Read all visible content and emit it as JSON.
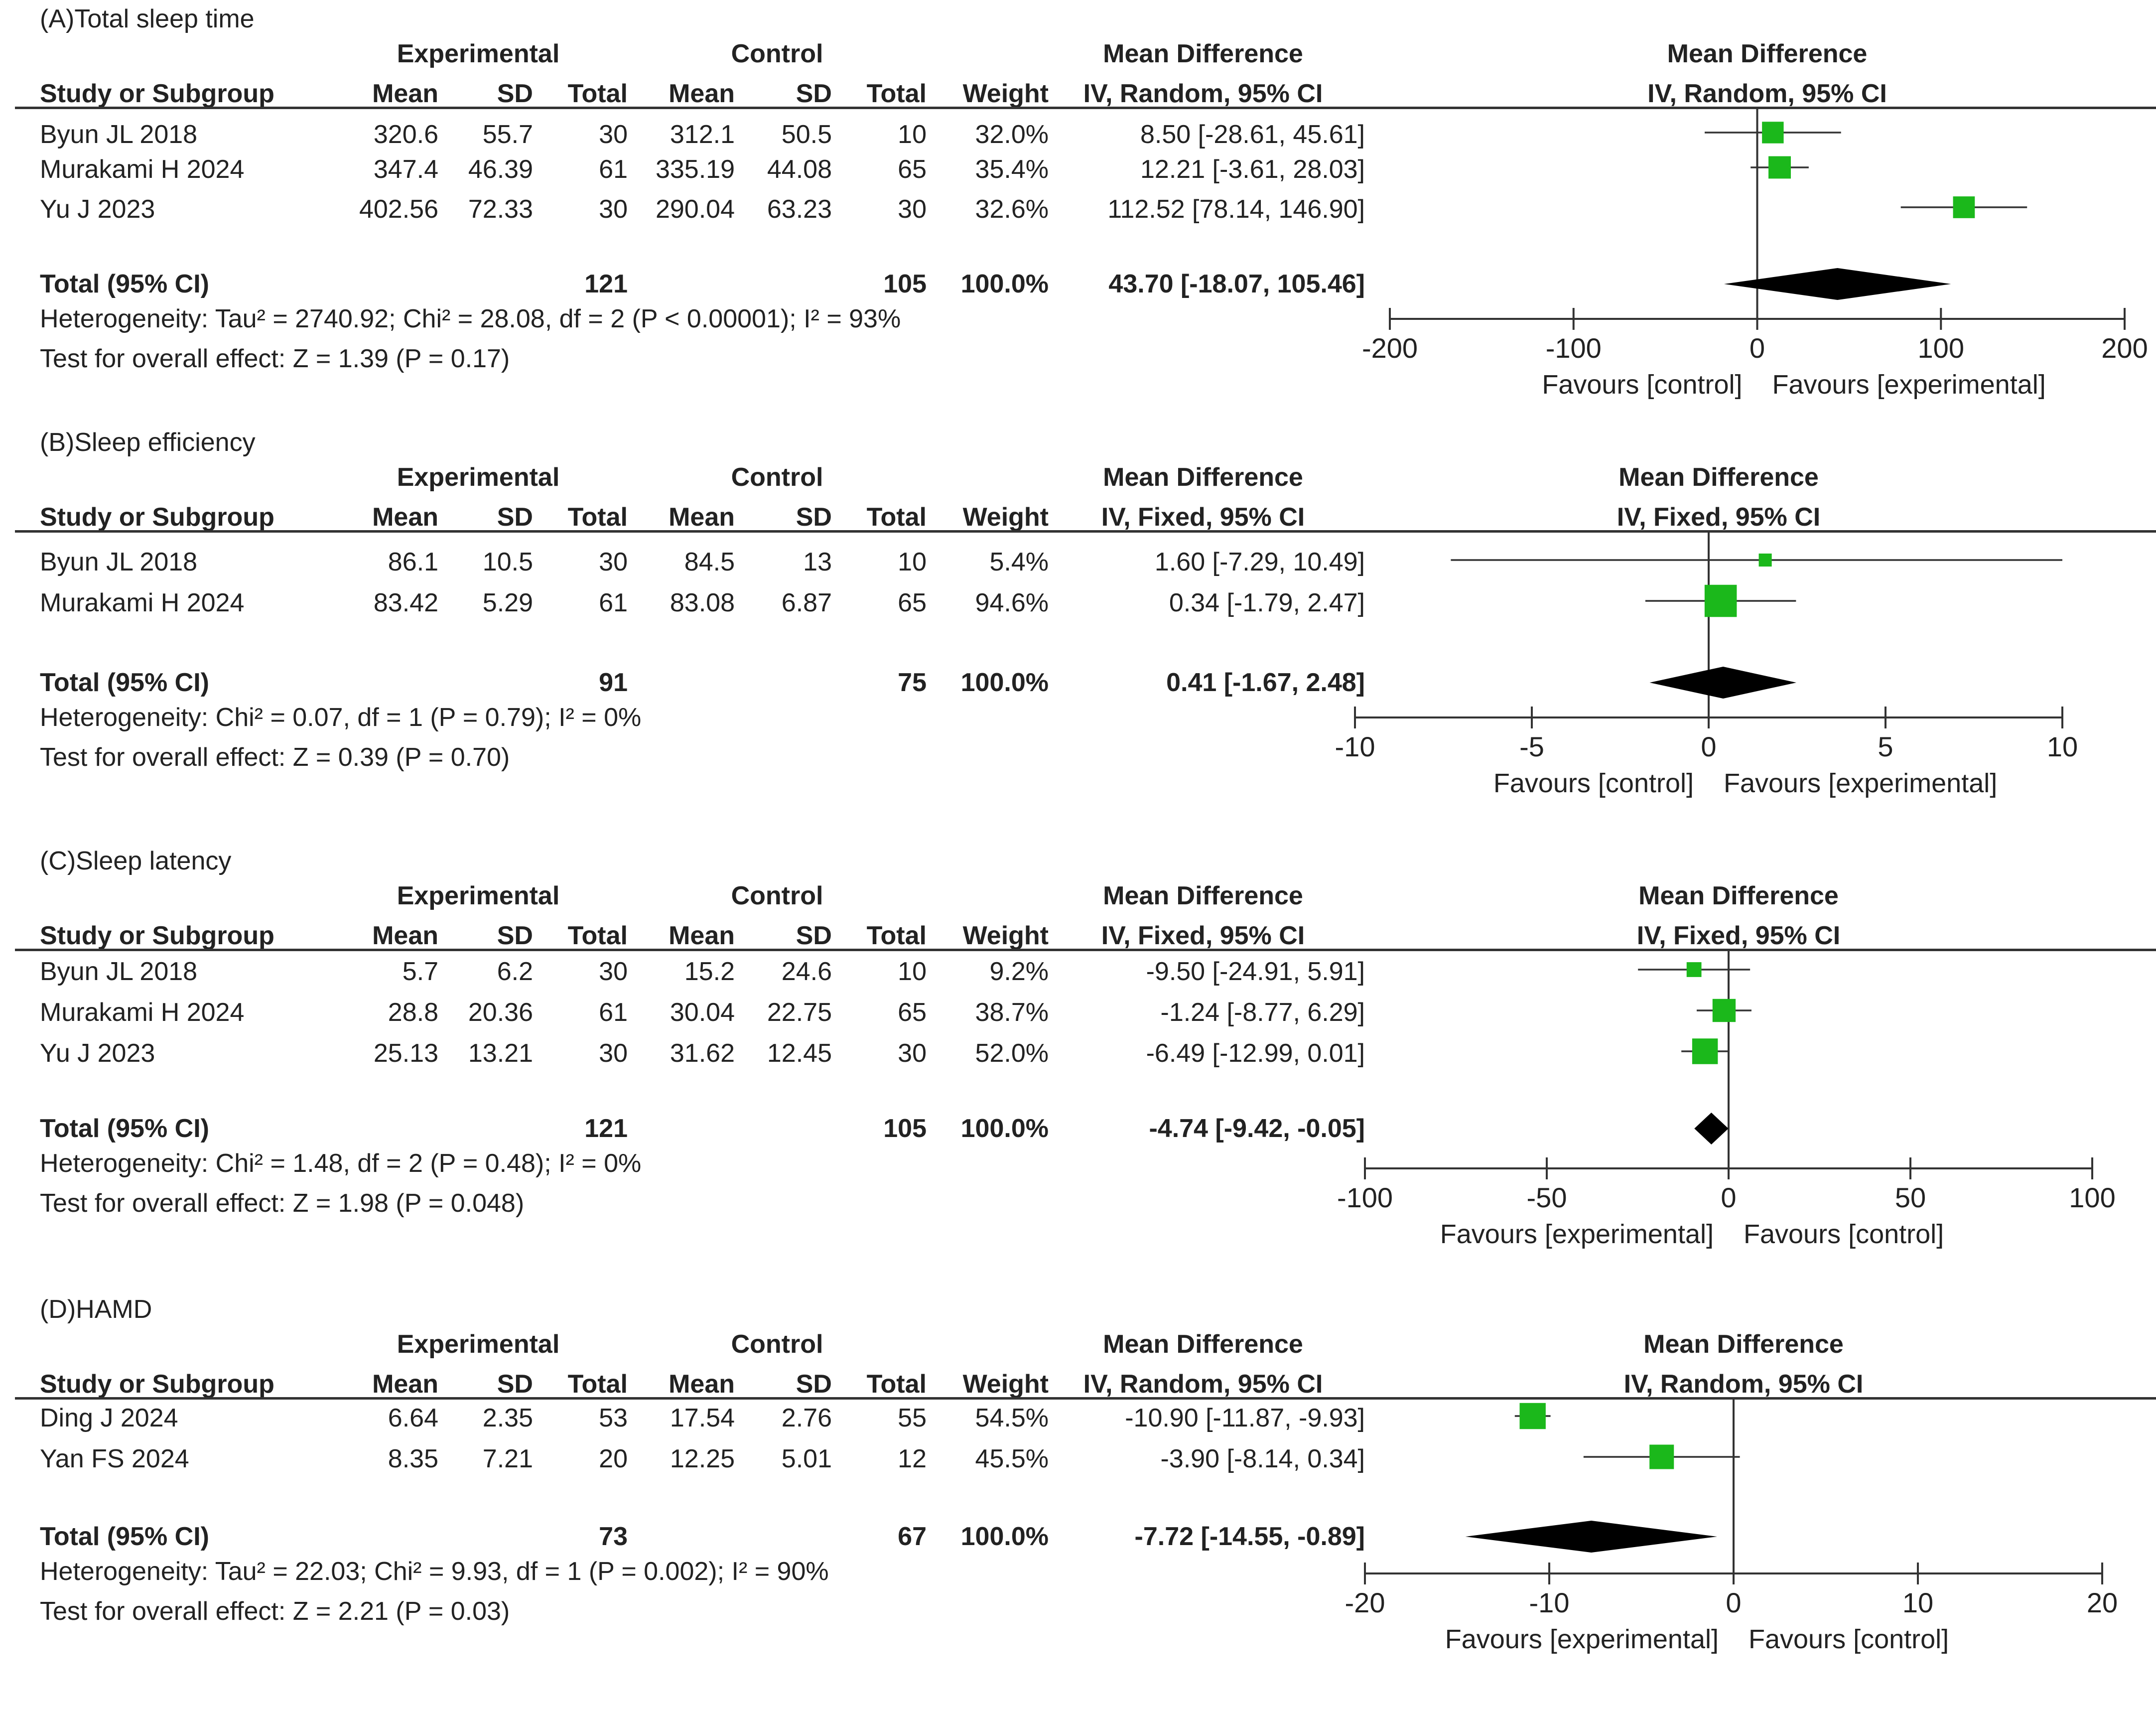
{
  "chart_data": [
    {
      "type": "forest",
      "title": "(A)Total sleep time",
      "group_headers": {
        "experimental": "Experimental",
        "control": "Control"
      },
      "effect_header": "Mean Difference",
      "method": "IV, Random, 95% CI",
      "columns": [
        "Study or Subgroup",
        "Mean",
        "SD",
        "Total",
        "Mean",
        "SD",
        "Total",
        "Weight",
        "IV, Random, 95% CI"
      ],
      "studies": [
        {
          "name": "Byun JL 2018",
          "exp_mean": "320.6",
          "exp_sd": "55.7",
          "exp_total": "30",
          "ctl_mean": "312.1",
          "ctl_sd": "50.5",
          "ctl_total": "10",
          "weight": "32.0%",
          "ci_text": "8.50 [-28.61, 45.61]",
          "md": 8.5,
          "lo": -28.61,
          "hi": 45.61
        },
        {
          "name": "Murakami H 2024",
          "exp_mean": "347.4",
          "exp_sd": "46.39",
          "exp_total": "61",
          "ctl_mean": "335.19",
          "ctl_sd": "44.08",
          "ctl_total": "65",
          "weight": "35.4%",
          "ci_text": "12.21 [-3.61, 28.03]",
          "md": 12.21,
          "lo": -3.61,
          "hi": 28.03
        },
        {
          "name": "Yu J 2023",
          "exp_mean": "402.56",
          "exp_sd": "72.33",
          "exp_total": "30",
          "ctl_mean": "290.04",
          "ctl_sd": "63.23",
          "ctl_total": "30",
          "weight": "32.6%",
          "ci_text": "112.52 [78.14, 146.90]",
          "md": 112.52,
          "lo": 78.14,
          "hi": 146.9
        }
      ],
      "total": {
        "label": "Total (95% CI)",
        "exp_total": "121",
        "ctl_total": "105",
        "weight": "100.0%",
        "ci_text": "43.70 [-18.07, 105.46]",
        "md": 43.7,
        "lo": -18.07,
        "hi": 105.46
      },
      "heterogeneity": "Heterogeneity: Tau² = 2740.92; Chi² = 28.08, df = 2 (P < 0.00001); I² = 93%",
      "overall_test": "Test for overall effect: Z = 1.39 (P = 0.17)",
      "x_range": [
        -200,
        200
      ],
      "ticks": [
        -200,
        -100,
        0,
        100,
        200
      ],
      "favours_left": "Favours [control]",
      "favours_right": "Favours [experimental]"
    },
    {
      "type": "forest",
      "title": "(B)Sleep efficiency",
      "group_headers": {
        "experimental": "Experimental",
        "control": "Control"
      },
      "effect_header": "Mean Difference",
      "method": "IV, Fixed, 95% CI",
      "columns": [
        "Study or Subgroup",
        "Mean",
        "SD",
        "Total",
        "Mean",
        "SD",
        "Total",
        "Weight",
        "IV, Fixed, 95% CI"
      ],
      "studies": [
        {
          "name": "Byun JL 2018",
          "exp_mean": "86.1",
          "exp_sd": "10.5",
          "exp_total": "30",
          "ctl_mean": "84.5",
          "ctl_sd": "13",
          "ctl_total": "10",
          "weight": "5.4%",
          "ci_text": "1.60 [-7.29, 10.49]",
          "md": 1.6,
          "lo": -7.29,
          "hi": 10.49
        },
        {
          "name": "Murakami H 2024",
          "exp_mean": "83.42",
          "exp_sd": "5.29",
          "exp_total": "61",
          "ctl_mean": "83.08",
          "ctl_sd": "6.87",
          "ctl_total": "65",
          "weight": "94.6%",
          "ci_text": "0.34 [-1.79, 2.47]",
          "md": 0.34,
          "lo": -1.79,
          "hi": 2.47
        }
      ],
      "total": {
        "label": "Total (95% CI)",
        "exp_total": "91",
        "ctl_total": "75",
        "weight": "100.0%",
        "ci_text": "0.41 [-1.67, 2.48]",
        "md": 0.41,
        "lo": -1.67,
        "hi": 2.48
      },
      "heterogeneity": "Heterogeneity: Chi² = 0.07, df = 1 (P = 0.79); I² = 0%",
      "overall_test": "Test for overall effect: Z = 0.39 (P = 0.70)",
      "x_range": [
        -10,
        10
      ],
      "ticks": [
        -10,
        -5,
        0,
        5,
        10
      ],
      "favours_left": "Favours [control]",
      "favours_right": "Favours [experimental]"
    },
    {
      "type": "forest",
      "title": "(C)Sleep latency",
      "group_headers": {
        "experimental": "Experimental",
        "control": "Control"
      },
      "effect_header": "Mean Difference",
      "method": "IV, Fixed, 95% CI",
      "columns": [
        "Study or Subgroup",
        "Mean",
        "SD",
        "Total",
        "Mean",
        "SD",
        "Total",
        "Weight",
        "IV, Fixed, 95% CI"
      ],
      "studies": [
        {
          "name": "Byun JL 2018",
          "exp_mean": "5.7",
          "exp_sd": "6.2",
          "exp_total": "30",
          "ctl_mean": "15.2",
          "ctl_sd": "24.6",
          "ctl_total": "10",
          "weight": "9.2%",
          "ci_text": "-9.50 [-24.91, 5.91]",
          "md": -9.5,
          "lo": -24.91,
          "hi": 5.91
        },
        {
          "name": "Murakami H 2024",
          "exp_mean": "28.8",
          "exp_sd": "20.36",
          "exp_total": "61",
          "ctl_mean": "30.04",
          "ctl_sd": "22.75",
          "ctl_total": "65",
          "weight": "38.7%",
          "ci_text": "-1.24 [-8.77, 6.29]",
          "md": -1.24,
          "lo": -8.77,
          "hi": 6.29
        },
        {
          "name": "Yu J 2023",
          "exp_mean": "25.13",
          "exp_sd": "13.21",
          "exp_total": "30",
          "ctl_mean": "31.62",
          "ctl_sd": "12.45",
          "ctl_total": "30",
          "weight": "52.0%",
          "ci_text": "-6.49 [-12.99, 0.01]",
          "md": -6.49,
          "lo": -12.99,
          "hi": 0.01
        }
      ],
      "total": {
        "label": "Total (95% CI)",
        "exp_total": "121",
        "ctl_total": "105",
        "weight": "100.0%",
        "ci_text": "-4.74 [-9.42, -0.05]",
        "md": -4.74,
        "lo": -9.42,
        "hi": -0.05
      },
      "heterogeneity": "Heterogeneity: Chi² = 1.48, df = 2 (P = 0.48); I² = 0%",
      "overall_test": "Test for overall effect: Z = 1.98  (P = 0.048)",
      "x_range": [
        -100,
        100
      ],
      "ticks": [
        -100,
        -50,
        0,
        50,
        100
      ],
      "favours_left": "Favours [experimental]",
      "favours_right": "Favours [control]"
    },
    {
      "type": "forest",
      "title": "(D)HAMD",
      "group_headers": {
        "experimental": "Experimental",
        "control": "Control"
      },
      "effect_header": "Mean Difference",
      "method": "IV, Random, 95% CI",
      "columns": [
        "Study or Subgroup",
        "Mean",
        "SD",
        "Total",
        "Mean",
        "SD",
        "Total",
        "Weight",
        "IV, Random, 95% CI"
      ],
      "studies": [
        {
          "name": "Ding J 2024",
          "exp_mean": "6.64",
          "exp_sd": "2.35",
          "exp_total": "53",
          "ctl_mean": "17.54",
          "ctl_sd": "2.76",
          "ctl_total": "55",
          "weight": "54.5%",
          "ci_text": "-10.90 [-11.87, -9.93]",
          "md": -10.9,
          "lo": -11.87,
          "hi": -9.93
        },
        {
          "name": "Yan FS 2024",
          "exp_mean": "8.35",
          "exp_sd": "7.21",
          "exp_total": "20",
          "ctl_mean": "12.25",
          "ctl_sd": "5.01",
          "ctl_total": "12",
          "weight": "45.5%",
          "ci_text": "-3.90 [-8.14, 0.34]",
          "md": -3.9,
          "lo": -8.14,
          "hi": 0.34
        }
      ],
      "total": {
        "label": "Total (95% CI)",
        "exp_total": "73",
        "ctl_total": "67",
        "weight": "100.0%",
        "ci_text": "-7.72 [-14.55, -0.89]",
        "md": -7.72,
        "lo": -14.55,
        "hi": -0.89
      },
      "heterogeneity": "Heterogeneity: Tau² = 22.03; Chi² = 9.93, df = 1 (P = 0.002); I² = 90%",
      "overall_test": "Test for overall effect: Z = 2.21 (P = 0.03)",
      "x_range": [
        -20,
        20
      ],
      "ticks": [
        -20,
        -10,
        0,
        10,
        20
      ],
      "favours_left": "Favours [experimental]",
      "favours_right": "Favours [control]"
    }
  ],
  "colors": {
    "study_marker": "#1bb81b",
    "diamond": "#000000",
    "lines": "#333333"
  }
}
